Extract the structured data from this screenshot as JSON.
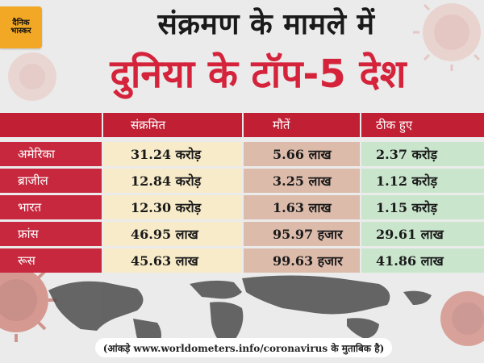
{
  "logo": {
    "line1": "दैनिक",
    "line2": "भास्कर"
  },
  "title": {
    "line1": "संक्रमण के मामले में",
    "line2": "दुनिया के टॉप-5 देश"
  },
  "table": {
    "headers": [
      "",
      "संक्रमित",
      "मौतें",
      "ठीक हुए"
    ],
    "rows": [
      {
        "country": "अमेरिका",
        "infected": "31.24 करोड़",
        "deaths": "5.66 लाख",
        "recovered": "2.37 करोड़"
      },
      {
        "country": "ब्राजील",
        "infected": "12.84 करोड़",
        "deaths": "3.25 लाख",
        "recovered": "1.12 करोड़"
      },
      {
        "country": "भारत",
        "infected": "12.30 करोड़",
        "deaths": "1.63 लाख",
        "recovered": "1.15 करोड़"
      },
      {
        "country": "फ्रांस",
        "infected": "46.95 लाख",
        "deaths": "95.97 हजार",
        "recovered": "29.61 लाख"
      },
      {
        "country": "रूस",
        "infected": "45.63 लाख",
        "deaths": "99.63 हजार",
        "recovered": "41.86 लाख"
      }
    ]
  },
  "footnote": "(आंकड़े www.worldometers.info/coronavirus के मुताबिक है)",
  "colors": {
    "title_red": "#d4233a",
    "header_red": "#c11f33",
    "logo_yellow": "#f2a825"
  }
}
